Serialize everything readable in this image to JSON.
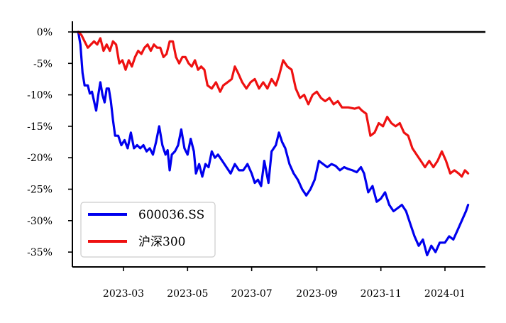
{
  "chart_data": {
    "type": "line",
    "title": "",
    "xlabel": "",
    "ylabel": "",
    "x_range": [
      "2023-01-04",
      "2024-01-31"
    ],
    "ylim": [
      -37,
      2
    ],
    "yticks": [
      0,
      -5,
      -10,
      -15,
      -20,
      -25,
      -30,
      -35
    ],
    "ytick_labels": [
      "0%",
      "-5%",
      "-10%",
      "-15%",
      "-20%",
      "-25%",
      "-30%",
      "-35%"
    ],
    "xticks": [
      "2023-03-01",
      "2023-05-01",
      "2023-07-01",
      "2023-09-01",
      "2023-11-01",
      "2024-01-01"
    ],
    "xtick_labels": [
      "2023-03",
      "2023-05",
      "2023-07",
      "2023-09",
      "2023-11",
      "2024-01"
    ],
    "zero_line": true,
    "grid": false,
    "legend_position": "bottom-left",
    "series": [
      {
        "name": "600036.SS",
        "color": "#0000ee",
        "points": [
          [
            "2023-01-17",
            0
          ],
          [
            "2023-01-19",
            -2
          ],
          [
            "2023-01-21",
            -6.5
          ],
          [
            "2023-01-23",
            -8.5
          ],
          [
            "2023-01-26",
            -8.5
          ],
          [
            "2023-01-28",
            -9.8
          ],
          [
            "2023-01-30",
            -9.5
          ],
          [
            "2023-02-01",
            -11
          ],
          [
            "2023-02-03",
            -12.5
          ],
          [
            "2023-02-05",
            -10
          ],
          [
            "2023-02-07",
            -8
          ],
          [
            "2023-02-09",
            -10
          ],
          [
            "2023-02-11",
            -11.2
          ],
          [
            "2023-02-13",
            -9
          ],
          [
            "2023-02-15",
            -9
          ],
          [
            "2023-02-17",
            -11
          ],
          [
            "2023-02-19",
            -14
          ],
          [
            "2023-02-21",
            -16.5
          ],
          [
            "2023-02-24",
            -16.5
          ],
          [
            "2023-02-27",
            -18
          ],
          [
            "2023-03-02",
            -17.2
          ],
          [
            "2023-03-05",
            -18.5
          ],
          [
            "2023-03-08",
            -16
          ],
          [
            "2023-03-11",
            -18.5
          ],
          [
            "2023-03-14",
            -18
          ],
          [
            "2023-03-17",
            -18.5
          ],
          [
            "2023-03-20",
            -18
          ],
          [
            "2023-03-23",
            -19
          ],
          [
            "2023-03-26",
            -18.5
          ],
          [
            "2023-03-29",
            -19.5
          ],
          [
            "2023-04-01",
            -17.5
          ],
          [
            "2023-04-04",
            -15
          ],
          [
            "2023-04-07",
            -18
          ],
          [
            "2023-04-10",
            -19.5
          ],
          [
            "2023-04-12",
            -18.8
          ],
          [
            "2023-04-14",
            -22
          ],
          [
            "2023-04-16",
            -19.5
          ],
          [
            "2023-04-19",
            -19
          ],
          [
            "2023-04-22",
            -18
          ],
          [
            "2023-04-25",
            -15.5
          ],
          [
            "2023-04-28",
            -18.5
          ],
          [
            "2023-05-01",
            -19.5
          ],
          [
            "2023-05-04",
            -17
          ],
          [
            "2023-05-07",
            -19
          ],
          [
            "2023-05-09",
            -22.5
          ],
          [
            "2023-05-12",
            -21
          ],
          [
            "2023-05-15",
            -23
          ],
          [
            "2023-05-18",
            -21
          ],
          [
            "2023-05-21",
            -21.5
          ],
          [
            "2023-05-24",
            -19
          ],
          [
            "2023-05-27",
            -20
          ],
          [
            "2023-05-30",
            -19.5
          ],
          [
            "2023-06-03",
            -20.5
          ],
          [
            "2023-06-07",
            -21.5
          ],
          [
            "2023-06-11",
            -22.5
          ],
          [
            "2023-06-15",
            -21
          ],
          [
            "2023-06-19",
            -22
          ],
          [
            "2023-06-23",
            -22
          ],
          [
            "2023-06-27",
            -21
          ],
          [
            "2023-07-01",
            -22.5
          ],
          [
            "2023-07-04",
            -24
          ],
          [
            "2023-07-07",
            -23.5
          ],
          [
            "2023-07-10",
            -24.5
          ],
          [
            "2023-07-13",
            -20.5
          ],
          [
            "2023-07-17",
            -24
          ],
          [
            "2023-07-20",
            -19
          ],
          [
            "2023-07-24",
            -18
          ],
          [
            "2023-07-27",
            -16
          ],
          [
            "2023-07-30",
            -17.5
          ],
          [
            "2023-08-02",
            -18.5
          ],
          [
            "2023-08-06",
            -21
          ],
          [
            "2023-08-10",
            -22.5
          ],
          [
            "2023-08-14",
            -23.5
          ],
          [
            "2023-08-18",
            -25
          ],
          [
            "2023-08-22",
            -26
          ],
          [
            "2023-08-26",
            -25
          ],
          [
            "2023-08-30",
            -23.5
          ],
          [
            "2023-09-03",
            -20.5
          ],
          [
            "2023-09-07",
            -21
          ],
          [
            "2023-09-11",
            -21.5
          ],
          [
            "2023-09-15",
            -21
          ],
          [
            "2023-09-19",
            -21.3
          ],
          [
            "2023-09-23",
            -22
          ],
          [
            "2023-09-27",
            -21.5
          ],
          [
            "2023-10-01",
            -21.8
          ],
          [
            "2023-10-05",
            -22
          ],
          [
            "2023-10-09",
            -22.3
          ],
          [
            "2023-10-13",
            -21.5
          ],
          [
            "2023-10-16",
            -22.5
          ],
          [
            "2023-10-20",
            -25.5
          ],
          [
            "2023-10-24",
            -24.5
          ],
          [
            "2023-10-28",
            -27
          ],
          [
            "2023-11-01",
            -26.5
          ],
          [
            "2023-11-05",
            -25.5
          ],
          [
            "2023-11-09",
            -27.5
          ],
          [
            "2023-11-13",
            -28.5
          ],
          [
            "2023-11-17",
            -28
          ],
          [
            "2023-11-21",
            -27.5
          ],
          [
            "2023-11-25",
            -28.5
          ],
          [
            "2023-11-29",
            -30.5
          ],
          [
            "2023-12-03",
            -32.5
          ],
          [
            "2023-12-07",
            -34
          ],
          [
            "2023-12-11",
            -33
          ],
          [
            "2023-12-15",
            -35.5
          ],
          [
            "2023-12-19",
            -34
          ],
          [
            "2023-12-23",
            -35
          ],
          [
            "2023-12-27",
            -33.5
          ],
          [
            "2024-01-01",
            -33.5
          ],
          [
            "2024-01-05",
            -32.5
          ],
          [
            "2024-01-09",
            -33
          ],
          [
            "2024-01-13",
            -31.5
          ],
          [
            "2024-01-17",
            -30
          ],
          [
            "2024-01-21",
            -28.5
          ],
          [
            "2024-01-23",
            -27.5
          ]
        ]
      },
      {
        "name": "沪深300",
        "color": "#ee1111",
        "points": [
          [
            "2023-01-17",
            0
          ],
          [
            "2023-01-20",
            -0.5
          ],
          [
            "2023-01-23",
            -1.5
          ],
          [
            "2023-01-26",
            -2.5
          ],
          [
            "2023-01-29",
            -2
          ],
          [
            "2023-02-01",
            -1.5
          ],
          [
            "2023-02-04",
            -2
          ],
          [
            "2023-02-07",
            -1
          ],
          [
            "2023-02-10",
            -3
          ],
          [
            "2023-02-13",
            -2
          ],
          [
            "2023-02-16",
            -3
          ],
          [
            "2023-02-19",
            -1.5
          ],
          [
            "2023-02-22",
            -2
          ],
          [
            "2023-02-25",
            -5
          ],
          [
            "2023-02-28",
            -4.5
          ],
          [
            "2023-03-03",
            -6
          ],
          [
            "2023-03-06",
            -4.5
          ],
          [
            "2023-03-09",
            -5.5
          ],
          [
            "2023-03-12",
            -4
          ],
          [
            "2023-03-15",
            -3
          ],
          [
            "2023-03-18",
            -3.5
          ],
          [
            "2023-03-21",
            -2.5
          ],
          [
            "2023-03-24",
            -2
          ],
          [
            "2023-03-27",
            -3
          ],
          [
            "2023-03-30",
            -2
          ],
          [
            "2023-04-02",
            -2.5
          ],
          [
            "2023-04-05",
            -2.5
          ],
          [
            "2023-04-08",
            -4
          ],
          [
            "2023-04-11",
            -3.5
          ],
          [
            "2023-04-14",
            -1.5
          ],
          [
            "2023-04-17",
            -1.5
          ],
          [
            "2023-04-20",
            -4
          ],
          [
            "2023-04-23",
            -5
          ],
          [
            "2023-04-26",
            -4
          ],
          [
            "2023-04-29",
            -4
          ],
          [
            "2023-05-02",
            -5
          ],
          [
            "2023-05-05",
            -5.5
          ],
          [
            "2023-05-08",
            -4.5
          ],
          [
            "2023-05-11",
            -6
          ],
          [
            "2023-05-14",
            -5.5
          ],
          [
            "2023-05-17",
            -6
          ],
          [
            "2023-05-20",
            -8.5
          ],
          [
            "2023-05-24",
            -9
          ],
          [
            "2023-05-28",
            -8
          ],
          [
            "2023-06-01",
            -9.5
          ],
          [
            "2023-06-04",
            -8.5
          ],
          [
            "2023-06-08",
            -8
          ],
          [
            "2023-06-12",
            -7.5
          ],
          [
            "2023-06-15",
            -5.5
          ],
          [
            "2023-06-18",
            -6.5
          ],
          [
            "2023-06-22",
            -8
          ],
          [
            "2023-06-26",
            -9
          ],
          [
            "2023-06-30",
            -8
          ],
          [
            "2023-07-04",
            -7.5
          ],
          [
            "2023-07-08",
            -9
          ],
          [
            "2023-07-12",
            -8
          ],
          [
            "2023-07-16",
            -9
          ],
          [
            "2023-07-20",
            -7.5
          ],
          [
            "2023-07-24",
            -8.5
          ],
          [
            "2023-07-27",
            -7
          ],
          [
            "2023-07-31",
            -4.5
          ],
          [
            "2023-08-04",
            -5.5
          ],
          [
            "2023-08-08",
            -6
          ],
          [
            "2023-08-12",
            -9
          ],
          [
            "2023-08-16",
            -10.5
          ],
          [
            "2023-08-20",
            -10
          ],
          [
            "2023-08-24",
            -11.5
          ],
          [
            "2023-08-28",
            -10
          ],
          [
            "2023-09-01",
            -9.5
          ],
          [
            "2023-09-05",
            -10.5
          ],
          [
            "2023-09-09",
            -11
          ],
          [
            "2023-09-13",
            -10.5
          ],
          [
            "2023-09-17",
            -11.5
          ],
          [
            "2023-09-21",
            -11
          ],
          [
            "2023-09-25",
            -12
          ],
          [
            "2023-10-01",
            -12
          ],
          [
            "2023-10-07",
            -12.2
          ],
          [
            "2023-10-11",
            -12
          ],
          [
            "2023-10-14",
            -12.5
          ],
          [
            "2023-10-18",
            -13
          ],
          [
            "2023-10-22",
            -16.5
          ],
          [
            "2023-10-26",
            -16
          ],
          [
            "2023-10-30",
            -14.5
          ],
          [
            "2023-11-03",
            -15
          ],
          [
            "2023-11-07",
            -13.5
          ],
          [
            "2023-11-11",
            -14.5
          ],
          [
            "2023-11-15",
            -15
          ],
          [
            "2023-11-19",
            -14.5
          ],
          [
            "2023-11-23",
            -16
          ],
          [
            "2023-11-27",
            -16.5
          ],
          [
            "2023-12-01",
            -18.5
          ],
          [
            "2023-12-05",
            -19.5
          ],
          [
            "2023-12-09",
            -20.5
          ],
          [
            "2023-12-13",
            -21.5
          ],
          [
            "2023-12-17",
            -20.5
          ],
          [
            "2023-12-21",
            -21.5
          ],
          [
            "2023-12-25",
            -20.5
          ],
          [
            "2023-12-29",
            -19
          ],
          [
            "2024-01-02",
            -20.5
          ],
          [
            "2024-01-06",
            -22.5
          ],
          [
            "2024-01-10",
            -22
          ],
          [
            "2024-01-14",
            -22.5
          ],
          [
            "2024-01-17",
            -23
          ],
          [
            "2024-01-20",
            -22
          ],
          [
            "2024-01-23",
            -22.5
          ]
        ]
      }
    ]
  }
}
